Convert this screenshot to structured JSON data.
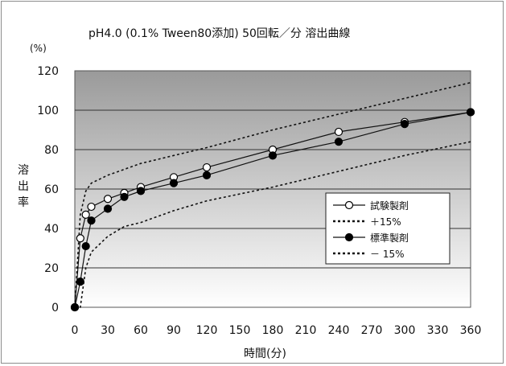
{
  "chart_data": {
    "type": "line",
    "title": "pH4.0 (0.1% Tween80添加) 50回転／分 溶出曲線",
    "ylabel": "溶出率",
    "yunit": "(%)",
    "xlabel": "時間(分)",
    "xlim": [
      0,
      360
    ],
    "ylim": [
      0,
      120
    ],
    "xticks": [
      0,
      30,
      60,
      90,
      120,
      150,
      180,
      210,
      240,
      270,
      300,
      330,
      360
    ],
    "yticks": [
      0,
      20,
      40,
      60,
      80,
      100,
      120
    ],
    "grid": "horizontal",
    "background": "gradient",
    "legend_position": "right-middle",
    "series": [
      {
        "name": "試験製剤",
        "style": "solid",
        "marker": "open-circle",
        "x": [
          0,
          5,
          10,
          15,
          30,
          45,
          60,
          90,
          120,
          180,
          240,
          300,
          360
        ],
        "y": [
          0,
          35,
          47,
          51,
          55,
          58,
          61,
          66,
          71,
          80,
          89,
          94,
          99
        ]
      },
      {
        "name": "＋15%",
        "style": "dotted",
        "marker": "none",
        "x": [
          0,
          5,
          10,
          15,
          30,
          45,
          60,
          90,
          120,
          180,
          240,
          300,
          360
        ],
        "y": [
          0,
          47,
          59,
          63,
          67,
          70,
          73,
          77,
          81,
          90,
          98,
          106,
          114
        ]
      },
      {
        "name": "標準製剤",
        "style": "solid",
        "marker": "filled-circle",
        "x": [
          0,
          5,
          10,
          15,
          30,
          45,
          60,
          90,
          120,
          180,
          240,
          300,
          360
        ],
        "y": [
          0,
          13,
          31,
          44,
          50,
          56,
          59,
          63,
          67,
          77,
          84,
          93,
          99
        ]
      },
      {
        "name": "－ 15%",
        "style": "dotted",
        "marker": "none",
        "x": [
          0,
          5,
          10,
          15,
          30,
          45,
          60,
          90,
          120,
          180,
          240,
          300,
          360
        ],
        "y": [
          0,
          0,
          20,
          28,
          36,
          41,
          43,
          49,
          54,
          61,
          69,
          77,
          84
        ]
      }
    ]
  }
}
